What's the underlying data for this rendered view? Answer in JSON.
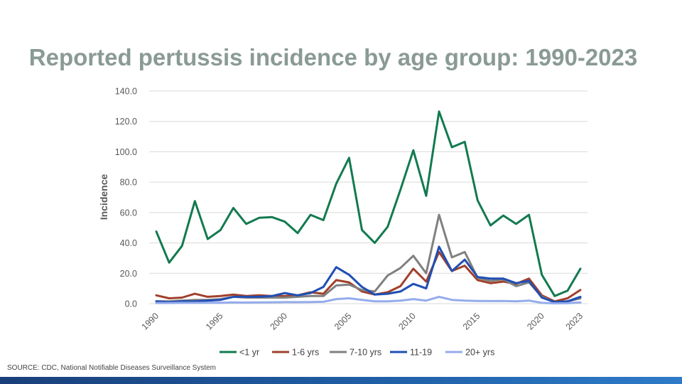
{
  "title": "Reported pertussis incidence by age group: 1990-2023",
  "source": "SOURCE: CDC, National Notifiable Diseases Surveillance System",
  "chart_data": {
    "type": "line",
    "title": "Reported pertussis incidence by age group: 1990-2023",
    "xlabel": "",
    "ylabel": "Incidence",
    "x": [
      1990,
      1991,
      1992,
      1993,
      1994,
      1995,
      1996,
      1997,
      1998,
      1999,
      2000,
      2001,
      2002,
      2003,
      2004,
      2005,
      2006,
      2007,
      2008,
      2009,
      2010,
      2011,
      2012,
      2013,
      2014,
      2015,
      2016,
      2017,
      2018,
      2019,
      2020,
      2021,
      2022,
      2023
    ],
    "x_tick_labels": [
      "1990",
      "1995",
      "2000",
      "2005",
      "2010",
      "2015",
      "2020",
      "2023"
    ],
    "x_tick_values": [
      1990,
      1995,
      2000,
      2005,
      2010,
      2015,
      2020,
      2023
    ],
    "ylim": [
      0,
      140
    ],
    "y_ticks": [
      0,
      20,
      40,
      60,
      80,
      100,
      120,
      140
    ],
    "y_tick_labels": [
      "0.0",
      "20.0",
      "40.0",
      "60.0",
      "80.0",
      "100.0",
      "120.0",
      "140.0"
    ],
    "grid": "horizontal",
    "legend_position": "bottom",
    "series": [
      {
        "name": "<1 yr",
        "color": "#127A4F",
        "values": [
          47.5,
          27.0,
          38.0,
          67.5,
          42.5,
          48.5,
          63.0,
          52.5,
          56.5,
          57.0,
          54.0,
          46.5,
          58.5,
          55.0,
          79.0,
          96.0,
          48.5,
          40.0,
          50.5,
          75.0,
          101.0,
          71.0,
          126.5,
          103.0,
          106.5,
          68.0,
          51.5,
          58.0,
          52.5,
          58.5,
          19.0,
          5.0,
          8.5,
          23.0
        ]
      },
      {
        "name": "1-6 yrs",
        "color": "#A0402B",
        "values": [
          5.5,
          3.5,
          4.0,
          6.5,
          4.5,
          5.0,
          6.0,
          5.0,
          5.5,
          5.0,
          5.0,
          5.5,
          7.5,
          6.5,
          15.5,
          14.0,
          8.0,
          6.0,
          7.5,
          11.5,
          23.0,
          14.5,
          34.0,
          21.5,
          25.0,
          15.5,
          13.5,
          14.5,
          13.0,
          16.5,
          5.5,
          1.5,
          3.5,
          9.0
        ]
      },
      {
        "name": "7-10 yrs",
        "color": "#808080",
        "values": [
          1.5,
          1.5,
          2.0,
          2.5,
          2.5,
          3.0,
          4.5,
          4.0,
          4.0,
          4.0,
          4.0,
          4.5,
          5.0,
          5.0,
          12.0,
          12.5,
          9.0,
          8.0,
          18.5,
          23.5,
          31.5,
          20.0,
          58.5,
          30.5,
          34.0,
          17.0,
          15.0,
          16.0,
          11.5,
          14.0,
          4.5,
          1.0,
          1.5,
          3.5
        ]
      },
      {
        "name": "11-19",
        "color": "#1F4FB5",
        "values": [
          1.5,
          1.0,
          1.5,
          1.5,
          2.0,
          2.5,
          4.5,
          4.5,
          4.5,
          5.0,
          7.0,
          5.5,
          7.0,
          11.0,
          24.0,
          19.0,
          11.0,
          6.0,
          6.5,
          8.0,
          13.0,
          10.0,
          37.5,
          21.5,
          29.0,
          17.5,
          16.5,
          16.5,
          13.5,
          15.0,
          4.0,
          1.0,
          1.5,
          4.5
        ]
      },
      {
        "name": "20+ yrs",
        "color": "#94ACEB",
        "values": [
          0.4,
          0.4,
          0.5,
          0.5,
          0.6,
          0.6,
          0.8,
          0.7,
          0.8,
          0.9,
          1.0,
          1.0,
          1.1,
          1.2,
          3.0,
          3.5,
          2.5,
          1.5,
          1.5,
          2.0,
          3.0,
          2.0,
          4.5,
          2.5,
          2.0,
          1.8,
          1.7,
          1.8,
          1.5,
          2.0,
          0.5,
          0.2,
          0.3,
          0.8
        ]
      }
    ]
  }
}
